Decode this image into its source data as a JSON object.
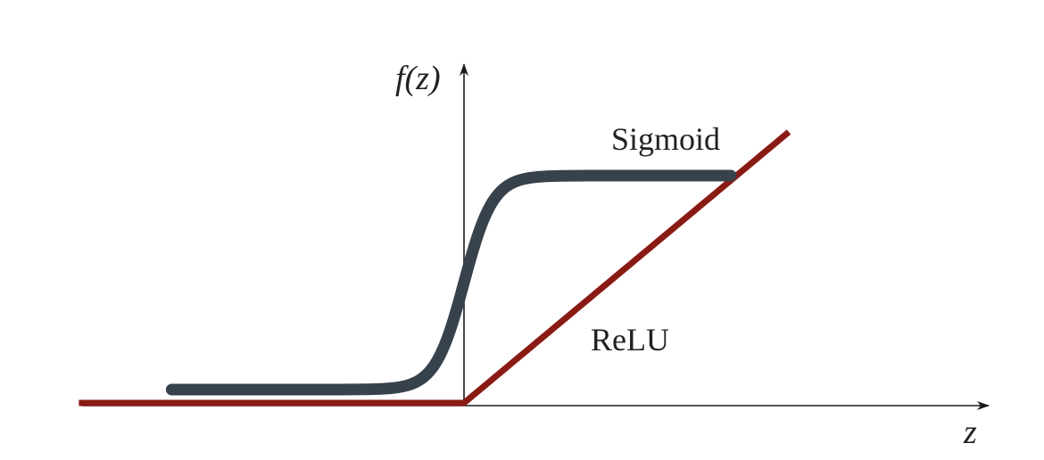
{
  "chart_data": {
    "type": "line",
    "title": "",
    "xlabel": "z",
    "ylabel": "f(z)",
    "grid": false,
    "legend": "none",
    "series": [
      {
        "name": "Sigmoid",
        "color": "#37424c",
        "function": "sigmoid",
        "x_range": [
          -6.3,
          5.75
        ]
      },
      {
        "name": "ReLU",
        "color": "#8a1a14",
        "function": "relu",
        "x_range": [
          -8.3,
          7.0
        ]
      }
    ]
  }
}
